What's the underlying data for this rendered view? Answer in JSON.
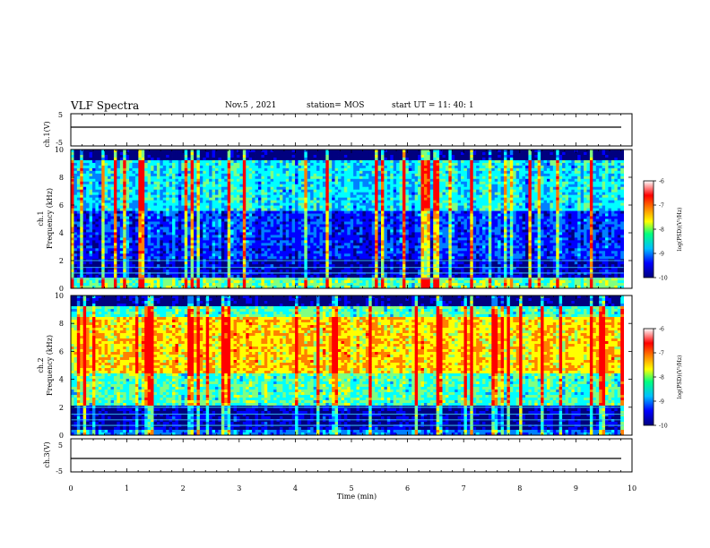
{
  "header": {
    "title": "VLF Spectra",
    "date": "Nov.5 , 2021",
    "station": "station= MOS",
    "start_ut": "start UT =  11: 40: 1"
  },
  "panels": {
    "ch1_wave": {
      "ylabel": "ch.1(V)",
      "yticks": [
        "5",
        "-5"
      ]
    },
    "ch1_spec": {
      "ylabel_top": "ch.1",
      "ylabel_bottom": "Frequency (kHz)",
      "yticks": [
        "10",
        "8",
        "6",
        "4",
        "2",
        "0"
      ]
    },
    "ch2_spec": {
      "ylabel_top": "ch.2",
      "ylabel_bottom": "Frequency (kHz)",
      "yticks": [
        "10",
        "8",
        "6",
        "4",
        "2",
        "0"
      ]
    },
    "ch3_wave": {
      "ylabel": "ch.3(V)",
      "yticks": [
        "5",
        "-5"
      ]
    }
  },
  "colorbar": {
    "label": "log(PSD)(V²/Hz)",
    "ticks": [
      "-6",
      "-7",
      "-8",
      "-9",
      "-10"
    ]
  },
  "xaxis": {
    "label": "Time (min)",
    "ticks": [
      "0",
      "1",
      "2",
      "3",
      "4",
      "5",
      "6",
      "7",
      "8",
      "9",
      "10"
    ]
  },
  "chart_data": {
    "type": "heatmap",
    "title": "VLF Spectra",
    "xlabel": "Time (min)",
    "xlim": [
      0,
      10
    ],
    "data_end_min": 9.85,
    "channels": [
      {
        "name": "ch.1",
        "ylabel": "Frequency (kHz)",
        "ylim": [
          0,
          10
        ],
        "zlabel": "log(PSD)(V²/Hz)",
        "zlim": [
          -10,
          -6
        ]
      },
      {
        "name": "ch.2",
        "ylabel": "Frequency (kHz)",
        "ylim": [
          0,
          10
        ],
        "zlabel": "log(PSD)(V²/Hz)",
        "zlim": [
          -10,
          -6
        ]
      }
    ],
    "waveforms": [
      {
        "name": "ch.1(V)",
        "ylim": [
          -5,
          5
        ]
      },
      {
        "name": "ch.3(V)",
        "ylim": [
          -5,
          5
        ]
      }
    ],
    "colormap": [
      "#00007f",
      "#0000ff",
      "#0080ff",
      "#00ffff",
      "#80ff80",
      "#ffff00",
      "#ff8000",
      "#ff0000",
      "#ffffff"
    ]
  }
}
